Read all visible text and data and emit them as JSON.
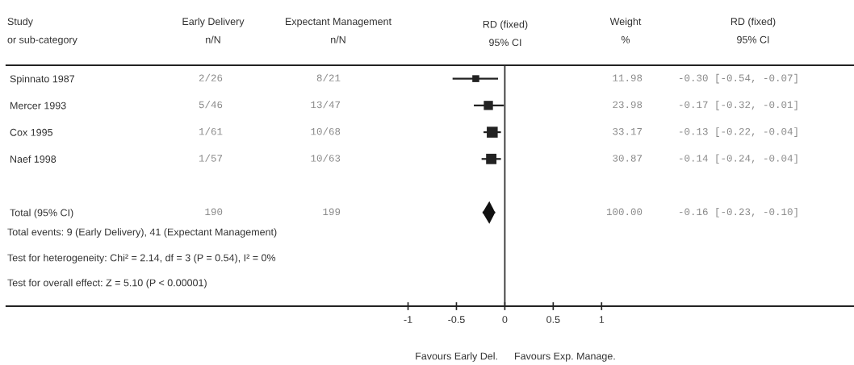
{
  "chart_data": {
    "type": "scatter",
    "orientation": "horizontal",
    "title": "RD (fixed)\n95% CI",
    "categories": [
      "Spinnato 1987",
      "Mercer 1993",
      "Cox 1995",
      "Naef 1998",
      null,
      "Total (95% CI)",
      null,
      null,
      null
    ],
    "series": [
      {
        "type": "bubble",
        "marker": "square",
        "color": "#222222",
        "values": [
          -0.3,
          -0.17,
          -0.13,
          -0.14,
          null,
          null,
          null,
          null,
          null
        ],
        "errors": [
          [
            -0.54,
            -0.07
          ],
          [
            -0.32,
            -0.01
          ],
          [
            -0.22,
            -0.04
          ],
          [
            -0.24,
            -0.04
          ],
          null,
          null,
          null,
          null,
          null
        ],
        "sizes": [
          0.4,
          0.7,
          1,
          0.9,
          null,
          null,
          null,
          null,
          null
        ]
      },
      {
        "marker": "diamond",
        "color": "#111111",
        "values": [
          null,
          null,
          null,
          null,
          null,
          -0.16,
          null,
          null,
          null
        ],
        "errors": [
          null,
          null,
          null,
          null,
          null,
          [
            -0.23,
            -0.1
          ],
          null,
          null,
          null
        ]
      }
    ],
    "xlim": [
      -5.15,
      3.6
    ],
    "xticks": [
      -1,
      -0.5,
      0,
      0.5,
      1
    ],
    "ref_lines": [
      {
        "axis": "x",
        "value": 0,
        "color": "#333333"
      }
    ],
    "annotations": [
      "Study\nor sub-category",
      "Early Delivery\nn/N",
      "Expectant Management\nn/N",
      "Weight\n%",
      "RD (fixed)\n95% CI",
      "2/26",
      "8/21",
      "11.98",
      "-0.30 [-0.54, -0.07]",
      "5/46",
      "13/47",
      "23.98",
      "-0.17 [-0.32, -0.01]",
      "1/61",
      "10/68",
      "33.17",
      "-0.13 [-0.22, -0.04]",
      "1/57",
      "10/63",
      "30.87",
      "-0.14 [-0.24, -0.04]",
      "190",
      "199",
      "100.00",
      "-0.16 [-0.23, -0.10]",
      "Total events: 9 (Early Delivery), 41 (Expectant Management)",
      "Test for heterogeneity: Chi² = 2.14, df = 3 (P = 0.54), I² = 0%",
      "Test for overall effect: Z = 5.10 (P < 0.00001)",
      "Favours Early Del.",
      "Favours Exp. Manage."
    ]
  }
}
